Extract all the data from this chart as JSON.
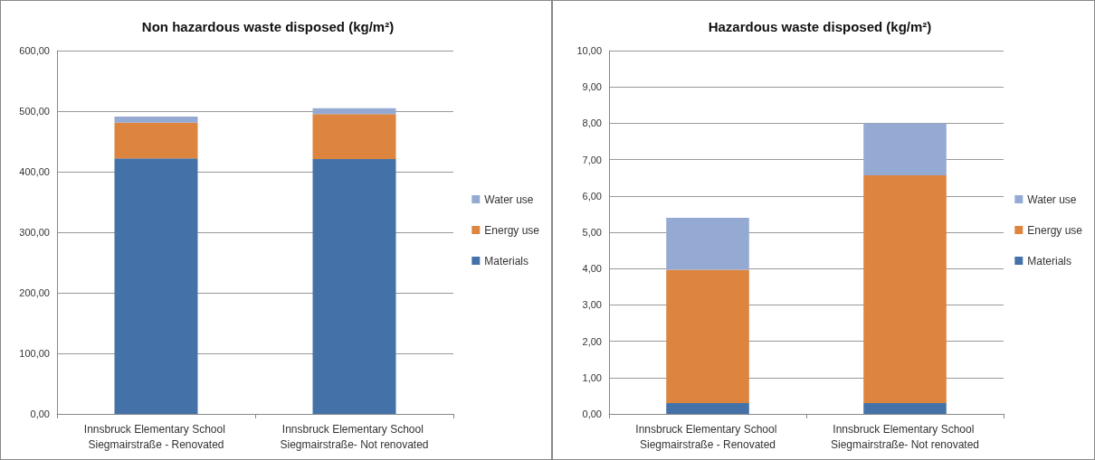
{
  "chart_data": [
    {
      "type": "bar",
      "title": "Non hazardous waste disposed (kg/m²)",
      "stacked": true,
      "categories": [
        "Innsbruck Elementary School Siegmairstraße - Renovated",
        "Innsbruck Elementary School Siegmairstraße- Not renovated"
      ],
      "series": [
        {
          "name": "Materials",
          "color": "#4472a8",
          "values": [
            422,
            421
          ]
        },
        {
          "name": "Energy use",
          "color": "#dd843e",
          "values": [
            59,
            74
          ]
        },
        {
          "name": "Water use",
          "color": "#95aad3",
          "values": [
            10,
            10
          ]
        }
      ],
      "ylim": [
        0,
        600
      ],
      "yticks": [
        {
          "value": 0,
          "label": "0,00"
        },
        {
          "value": 100,
          "label": "100,00"
        },
        {
          "value": 200,
          "label": "200,00"
        },
        {
          "value": 300,
          "label": "300,00"
        },
        {
          "value": 400,
          "label": "400,00"
        },
        {
          "value": 500,
          "label": "500,00"
        },
        {
          "value": 600,
          "label": "600,00"
        }
      ],
      "grid": "y",
      "legend": "right"
    },
    {
      "type": "bar",
      "title": "Hazardous waste disposed (kg/m²)",
      "stacked": true,
      "categories": [
        "Innsbruck Elementary School Siegmairstraße - Renovated",
        "Innsbruck Elementary School Siegmairstraße- Not renovated"
      ],
      "series": [
        {
          "name": "Materials",
          "color": "#4472a8",
          "values": [
            0.3,
            0.3
          ]
        },
        {
          "name": "Energy use",
          "color": "#dd843e",
          "values": [
            3.67,
            6.27
          ]
        },
        {
          "name": "Water use",
          "color": "#95aad3",
          "values": [
            1.43,
            1.43
          ]
        }
      ],
      "ylim": [
        0,
        10
      ],
      "yticks": [
        {
          "value": 0,
          "label": "0,00"
        },
        {
          "value": 1,
          "label": "1,00"
        },
        {
          "value": 2,
          "label": "2,00"
        },
        {
          "value": 3,
          "label": "3,00"
        },
        {
          "value": 4,
          "label": "4,00"
        },
        {
          "value": 5,
          "label": "5,00"
        },
        {
          "value": 6,
          "label": "6,00"
        },
        {
          "value": 7,
          "label": "7,00"
        },
        {
          "value": 8,
          "label": "8,00"
        },
        {
          "value": 9,
          "label": "9,00"
        },
        {
          "value": 10,
          "label": "10,00"
        }
      ],
      "grid": "y",
      "legend": "right"
    }
  ]
}
